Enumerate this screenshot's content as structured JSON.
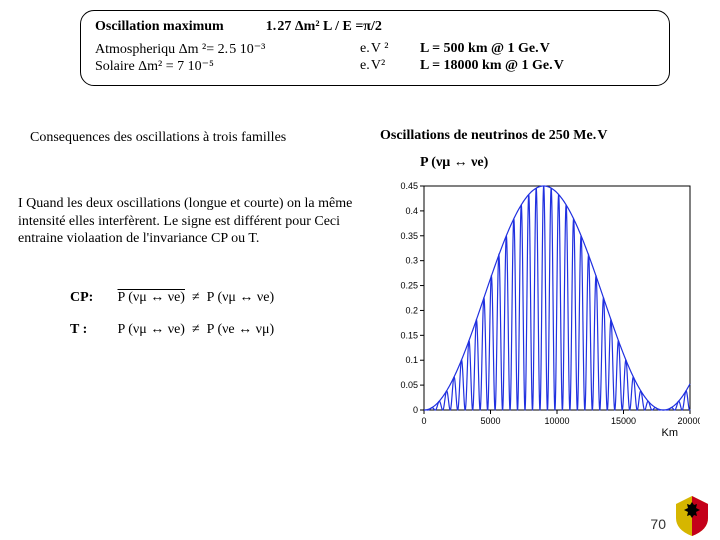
{
  "box": {
    "title_left": "Oscillation maximum",
    "title_right": "1. 27 Δm²  L / E =π/2",
    "atmo_left": "Atmospheriqu Δm ²= 2. 5 10⁻³",
    "atmo_mid": "e. V ²",
    "atmo_right": "L =   500 km @ 1 Ge. V",
    "sol_left": "Solaire            Δm² =   7 10⁻⁵",
    "sol_mid": "e. V²",
    "sol_right": "L = 18000 km @ 1 Ge. V"
  },
  "consequences": "Consequences des oscillations à trois familles",
  "osc_title": "Oscillations de neutrinos de 250 Me. V",
  "prob_label": "P (νμ ↔ νe)",
  "para": "I Quand les deux oscillations (longue et courte) on la même intensité elles interfèrent. Le signe est différent pour Ceci entraine violaation de l'invariance CP ou T.",
  "cp_label": "CP:",
  "t_label": "T :",
  "cp_formula_l": "P (νμ ↔ νe)",
  "cp_formula_r": "P (νμ ↔ νe)",
  "t_formula_l": "P (νμ ↔ νe)",
  "t_formula_r": "P (νe ↔ νμ)",
  "neq": "≠",
  "chart": {
    "type": "line",
    "xlim": [
      0,
      20000
    ],
    "ylim": [
      0,
      0.45
    ],
    "xticks": [
      0,
      5000,
      10000,
      15000,
      20000
    ],
    "yticks": [
      0,
      0.05,
      0.1,
      0.15,
      0.2,
      0.25,
      0.3,
      0.35,
      0.4,
      0.45
    ],
    "xlabel": "Km",
    "curve_color": "#2030e0",
    "axis_color": "#000000",
    "background_color": "#ffffff",
    "line_width": 1.2,
    "envelope_period_km": 18000,
    "fast_osc_count_per_lobe": 32,
    "amplitude_max": 0.45
  },
  "page": "70",
  "logo_colors": {
    "left": "#d6b600",
    "right": "#c4001a",
    "eagle": "#000000"
  }
}
